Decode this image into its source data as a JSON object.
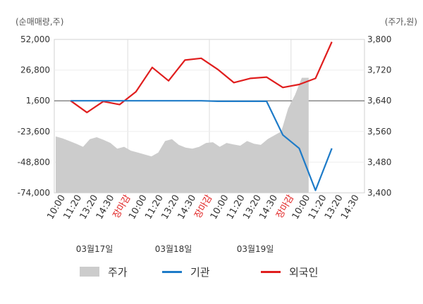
{
  "chart_data": {
    "type": "line",
    "left_axis_unit": "(순매매량,주)",
    "right_axis_unit": "(주가,원)",
    "left_axis": {
      "min": -74000,
      "max": 52000,
      "ticks": [
        "52,000",
        "26,800",
        "1,600",
        "-23,600",
        "-48,800",
        "-74,000"
      ]
    },
    "right_axis": {
      "min": 3400,
      "max": 3800,
      "ticks": [
        "3,800",
        "3,720",
        "3,640",
        "3,560",
        "3,480",
        "3,400"
      ]
    },
    "x_ticks": [
      "10:00",
      "11:20",
      "13:20",
      "14:30",
      "장마감",
      "10:00",
      "11:20",
      "13:20",
      "14:30",
      "장마감",
      "10:00",
      "11:20",
      "13:20",
      "14:30",
      "장마감",
      "10:00",
      "11:20",
      "13:20",
      "14:30"
    ],
    "x_tick_highlight": [
      false,
      false,
      false,
      false,
      true,
      false,
      false,
      false,
      false,
      true,
      false,
      false,
      false,
      false,
      true,
      false,
      false,
      false,
      false
    ],
    "day_labels": [
      "03월17일",
      "03월18일",
      "03월19일"
    ],
    "series": [
      {
        "name": "외국인",
        "color": "#e01e1e",
        "values": [
          1600,
          -8000,
          1000,
          -1500,
          9000,
          29000,
          18000,
          35000,
          36500,
          27500,
          16500,
          20000,
          21000,
          12500,
          15000,
          20000,
          50000
        ]
      },
      {
        "name": "기관",
        "color": "#1e7bc8",
        "values": [
          1600,
          1600,
          1600,
          1600,
          1600,
          1600,
          1600,
          1600,
          1600,
          1200,
          1200,
          1200,
          1200,
          -26500,
          -37500,
          -72000,
          -37500
        ]
      }
    ],
    "price_series": {
      "name": "주가",
      "color": "#cccccc",
      "values": [
        3547,
        3542,
        3535,
        3528,
        3520,
        3540,
        3545,
        3538,
        3530,
        3515,
        3520,
        3510,
        3505,
        3500,
        3495,
        3505,
        3535,
        3540,
        3525,
        3518,
        3515,
        3520,
        3530,
        3532,
        3520,
        3530,
        3526,
        3523,
        3535,
        3528,
        3525,
        3540,
        3550,
        3560,
        3620,
        3655,
        3700,
        3700
      ]
    }
  },
  "legend": [
    {
      "name": "주가",
      "kind": "area",
      "color": "#cccccc"
    },
    {
      "name": "기관",
      "kind": "line",
      "color": "#1e7bc8"
    },
    {
      "name": "외국인",
      "kind": "line",
      "color": "#e01e1e"
    }
  ]
}
